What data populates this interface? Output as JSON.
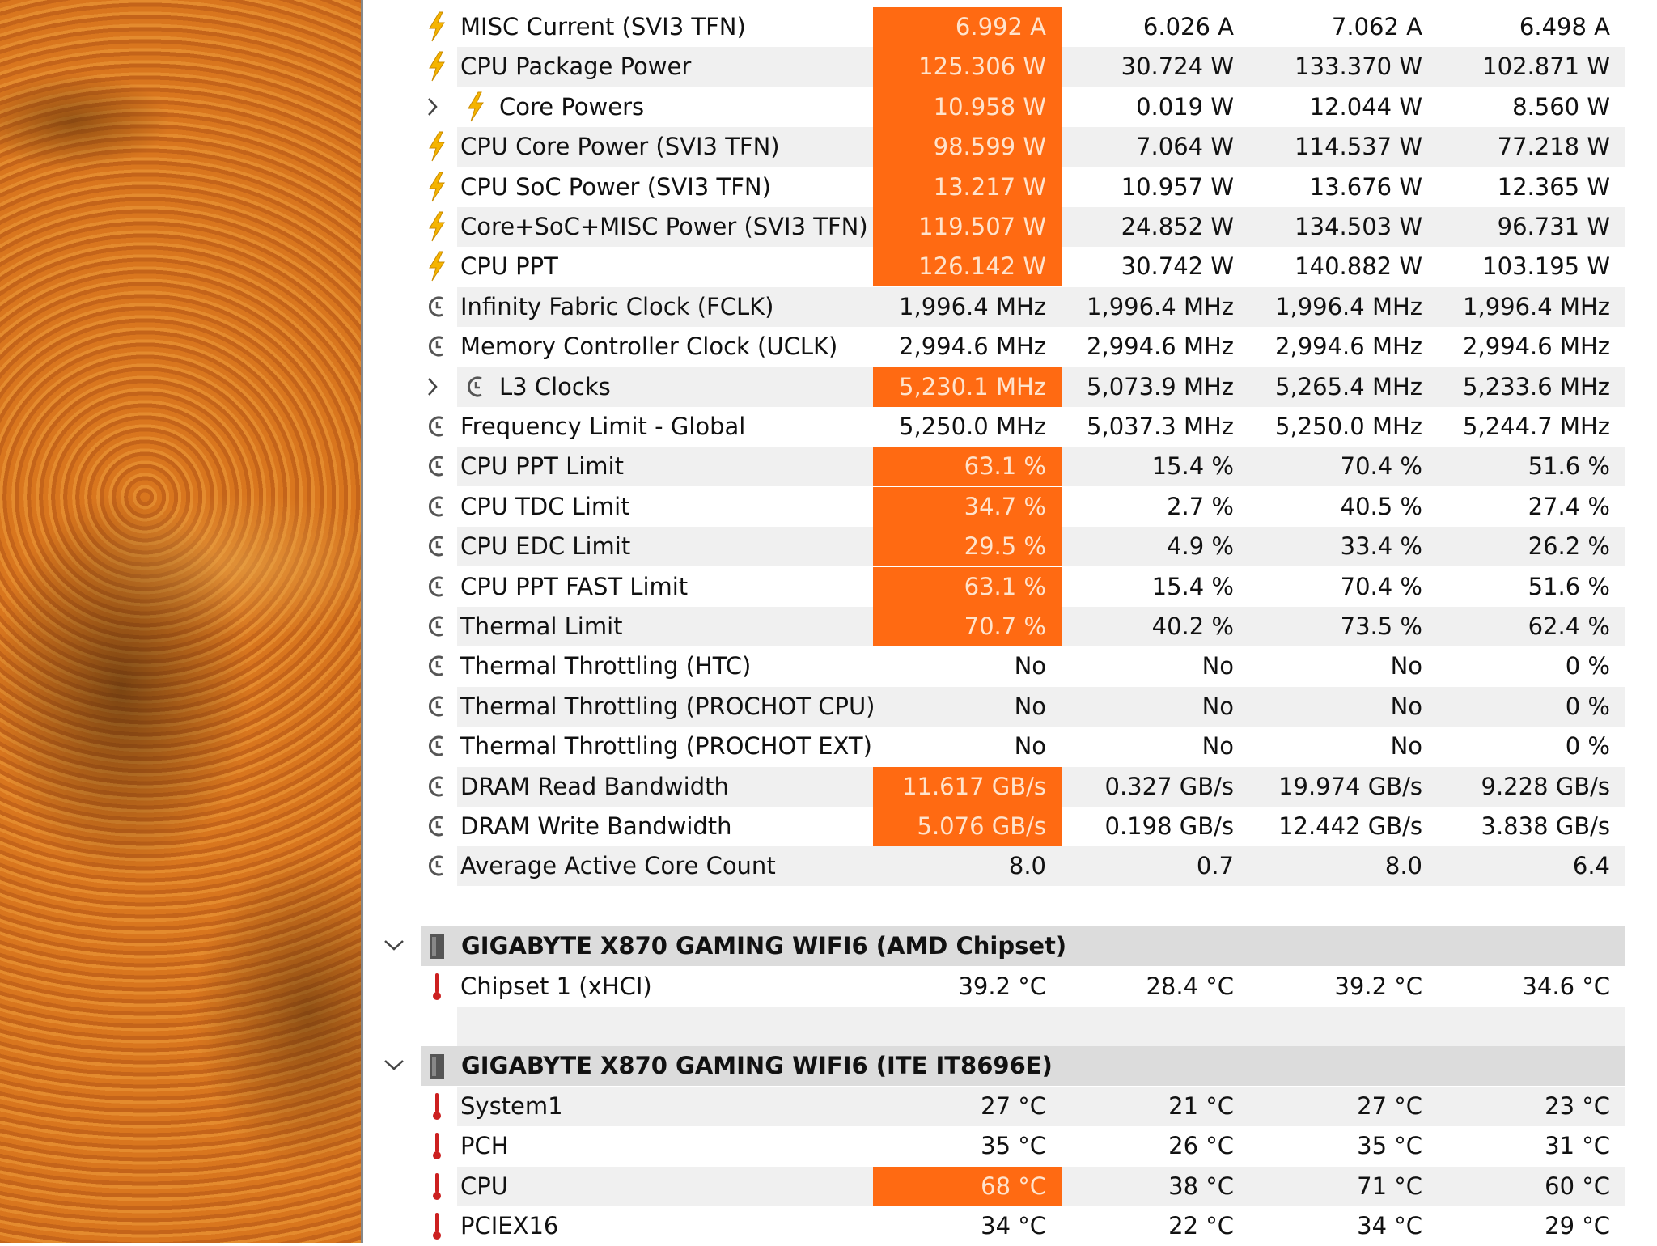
{
  "groups": [
    {
      "rows": [
        {
          "label": "MISC Current (SVI3 TFN)",
          "icon": "power",
          "values": [
            "6.992 A",
            "6.026 A",
            "7.062 A",
            "6.498 A"
          ],
          "alert": true
        },
        {
          "label": "CPU Package Power",
          "icon": "power",
          "values": [
            "125.306 W",
            "30.724 W",
            "133.370 W",
            "102.871 W"
          ],
          "alert": true
        },
        {
          "label": "Core Powers",
          "icon": "power",
          "expandable": true,
          "values": [
            "10.958 W",
            "0.019 W",
            "12.044 W",
            "8.560 W"
          ],
          "alert": true
        },
        {
          "label": "CPU Core Power (SVI3 TFN)",
          "icon": "power",
          "values": [
            "98.599 W",
            "7.064 W",
            "114.537 W",
            "77.218 W"
          ],
          "alert": true
        },
        {
          "label": "CPU SoC Power (SVI3 TFN)",
          "icon": "power",
          "values": [
            "13.217 W",
            "10.957 W",
            "13.676 W",
            "12.365 W"
          ],
          "alert": true
        },
        {
          "label": "Core+SoC+MISC Power (SVI3 TFN)",
          "icon": "power",
          "values": [
            "119.507 W",
            "24.852 W",
            "134.503 W",
            "96.731 W"
          ],
          "alert": true
        },
        {
          "label": "CPU PPT",
          "icon": "power",
          "values": [
            "126.142 W",
            "30.742 W",
            "140.882 W",
            "103.195 W"
          ],
          "alert": true
        },
        {
          "label": "Infinity Fabric Clock (FCLK)",
          "icon": "clock",
          "values": [
            "1,996.4 MHz",
            "1,996.4 MHz",
            "1,996.4 MHz",
            "1,996.4 MHz"
          ],
          "alert": false
        },
        {
          "label": "Memory Controller Clock (UCLK)",
          "icon": "clock",
          "values": [
            "2,994.6 MHz",
            "2,994.6 MHz",
            "2,994.6 MHz",
            "2,994.6 MHz"
          ],
          "alert": false
        },
        {
          "label": "L3 Clocks",
          "icon": "clock",
          "expandable": true,
          "values": [
            "5,230.1 MHz",
            "5,073.9 MHz",
            "5,265.4 MHz",
            "5,233.6 MHz"
          ],
          "alert": true
        },
        {
          "label": "Frequency Limit - Global",
          "icon": "clock",
          "values": [
            "5,250.0 MHz",
            "5,037.3 MHz",
            "5,250.0 MHz",
            "5,244.7 MHz"
          ],
          "alert": false
        },
        {
          "label": "CPU PPT Limit",
          "icon": "clock",
          "values": [
            "63.1 %",
            "15.4 %",
            "70.4 %",
            "51.6 %"
          ],
          "alert": true
        },
        {
          "label": "CPU TDC Limit",
          "icon": "clock",
          "values": [
            "34.7 %",
            "2.7 %",
            "40.5 %",
            "27.4 %"
          ],
          "alert": true
        },
        {
          "label": "CPU EDC Limit",
          "icon": "clock",
          "values": [
            "29.5 %",
            "4.9 %",
            "33.4 %",
            "26.2 %"
          ],
          "alert": true
        },
        {
          "label": "CPU PPT FAST Limit",
          "icon": "clock",
          "values": [
            "63.1 %",
            "15.4 %",
            "70.4 %",
            "51.6 %"
          ],
          "alert": true
        },
        {
          "label": "Thermal Limit",
          "icon": "clock",
          "values": [
            "70.7 %",
            "40.2 %",
            "73.5 %",
            "62.4 %"
          ],
          "alert": true
        },
        {
          "label": "Thermal Throttling (HTC)",
          "icon": "clock",
          "values": [
            "No",
            "No",
            "No",
            "0 %"
          ],
          "alert": false
        },
        {
          "label": "Thermal Throttling (PROCHOT CPU)",
          "icon": "clock",
          "values": [
            "No",
            "No",
            "No",
            "0 %"
          ],
          "alert": false
        },
        {
          "label": "Thermal Throttling (PROCHOT EXT)",
          "icon": "clock",
          "values": [
            "No",
            "No",
            "No",
            "0 %"
          ],
          "alert": false
        },
        {
          "label": "DRAM Read Bandwidth",
          "icon": "clock",
          "values": [
            "11.617 GB/s",
            "0.327 GB/s",
            "19.974 GB/s",
            "9.228 GB/s"
          ],
          "alert": true
        },
        {
          "label": "DRAM Write Bandwidth",
          "icon": "clock",
          "values": [
            "5.076 GB/s",
            "0.198 GB/s",
            "12.442 GB/s",
            "3.838 GB/s"
          ],
          "alert": true
        },
        {
          "label": "Average Active Core Count",
          "icon": "clock",
          "values": [
            "8.0",
            "0.7",
            "8.0",
            "6.4"
          ],
          "alert": false
        }
      ]
    },
    {
      "title": "GIGABYTE X870 GAMING WIFI6 (AMD Chipset)",
      "rows": [
        {
          "label": "Chipset 1 (xHCI)",
          "icon": "temp",
          "values": [
            "39.2 °C",
            "28.4 °C",
            "39.2 °C",
            "34.6 °C"
          ],
          "alert": false
        }
      ]
    },
    {
      "title": "GIGABYTE X870 GAMING WIFI6 (ITE IT8696E)",
      "rows": [
        {
          "label": "System1",
          "icon": "temp",
          "values": [
            "27 °C",
            "21 °C",
            "27 °C",
            "23 °C"
          ],
          "alert": false
        },
        {
          "label": "PCH",
          "icon": "temp",
          "values": [
            "35 °C",
            "26 °C",
            "35 °C",
            "31 °C"
          ],
          "alert": false
        },
        {
          "label": "CPU",
          "icon": "temp",
          "values": [
            "68 °C",
            "38 °C",
            "71 °C",
            "60 °C"
          ],
          "alert": true
        },
        {
          "label": "PCIEX16",
          "icon": "temp",
          "values": [
            "34 °C",
            "22 °C",
            "34 °C",
            "29 °C"
          ],
          "alert": false
        }
      ]
    }
  ]
}
